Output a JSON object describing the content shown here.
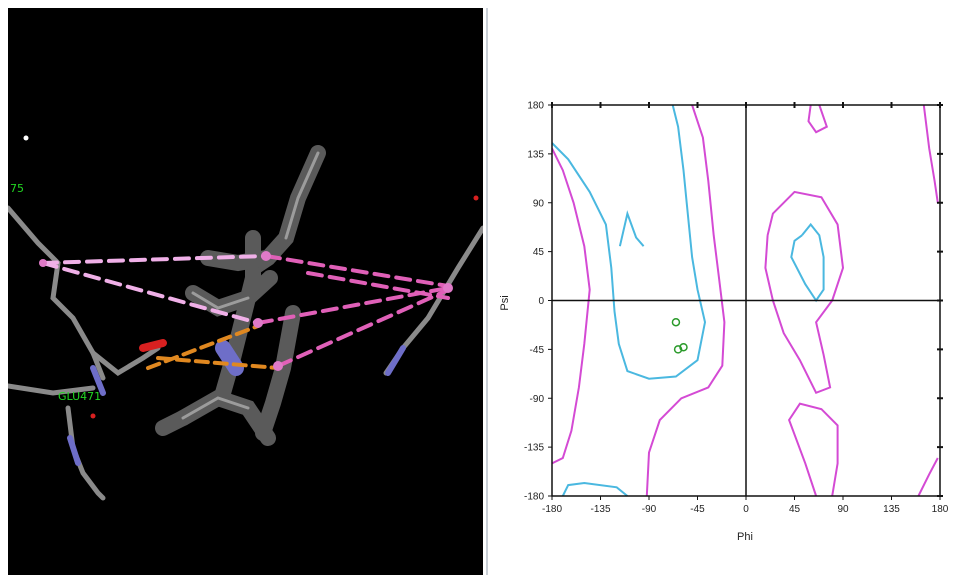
{
  "viewer": {
    "residue_labels": [
      {
        "text": "75"
      },
      {
        "text": "GLU471"
      }
    ]
  },
  "chart_data": {
    "type": "scatter",
    "title": "",
    "xlabel": "Phi",
    "ylabel": "Psi",
    "xlim": [
      -180,
      180
    ],
    "ylim": [
      -180,
      180
    ],
    "x_ticks": [
      "-180",
      "-135",
      "-90",
      "-45",
      "0",
      "45",
      "90",
      "135",
      "180"
    ],
    "y_ticks": [
      "180",
      "135",
      "90",
      "45",
      "0",
      "-45",
      "-90",
      "-135",
      "-180"
    ],
    "grid": false,
    "series": [
      {
        "values": [
          {
            "x": -65,
            "y": -20
          },
          {
            "x": -63,
            "y": -45
          },
          {
            "x": -58,
            "y": -43
          }
        ]
      }
    ],
    "contours": [
      {
        "color": "#4ab8e0",
        "points": [
          [
            -180,
            145
          ],
          [
            -165,
            130
          ],
          [
            -145,
            100
          ],
          [
            -130,
            70
          ],
          [
            -125,
            30
          ],
          [
            -122,
            -10
          ],
          [
            -118,
            -40
          ],
          [
            -110,
            -65
          ],
          [
            -90,
            -72
          ],
          [
            -65,
            -70
          ],
          [
            -45,
            -55
          ],
          [
            -38,
            -20
          ],
          [
            -45,
            10
          ],
          [
            -50,
            40
          ],
          [
            -55,
            90
          ],
          [
            -58,
            120
          ],
          [
            -63,
            160
          ],
          [
            -68,
            180
          ]
        ]
      },
      {
        "color": "#4ab8e0",
        "points": [
          [
            -117,
            50
          ],
          [
            -110,
            80
          ],
          [
            -102,
            58
          ],
          [
            -95,
            50
          ]
        ]
      },
      {
        "color": "#4ab8e0",
        "points": [
          [
            52,
            60
          ],
          [
            60,
            70
          ],
          [
            68,
            60
          ],
          [
            72,
            40
          ],
          [
            72,
            10
          ],
          [
            65,
            0
          ],
          [
            55,
            15
          ],
          [
            42,
            40
          ],
          [
            45,
            55
          ],
          [
            52,
            60
          ]
        ]
      },
      {
        "color": "#4ab8e0",
        "points": [
          [
            -170,
            -180
          ],
          [
            -165,
            -170
          ],
          [
            -150,
            -168
          ],
          [
            -120,
            -172
          ],
          [
            -110,
            -180
          ]
        ]
      },
      {
        "color": "#d44ad4",
        "points": [
          [
            -180,
            -150
          ],
          [
            -170,
            -145
          ],
          [
            -162,
            -120
          ],
          [
            -155,
            -80
          ],
          [
            -150,
            -40
          ],
          [
            -145,
            10
          ],
          [
            -150,
            50
          ],
          [
            -160,
            90
          ],
          [
            -170,
            120
          ],
          [
            -180,
            140
          ]
        ]
      },
      {
        "color": "#d44ad4",
        "points": [
          [
            -50,
            180
          ],
          [
            -40,
            150
          ],
          [
            -35,
            110
          ],
          [
            -30,
            60
          ],
          [
            -25,
            20
          ],
          [
            -20,
            -20
          ],
          [
            -22,
            -60
          ],
          [
            -35,
            -80
          ],
          [
            -60,
            -90
          ],
          [
            -80,
            -110
          ],
          [
            -90,
            -140
          ],
          [
            -92,
            -180
          ]
        ]
      },
      {
        "color": "#d44ad4",
        "points": [
          [
            20,
            60
          ],
          [
            25,
            80
          ],
          [
            45,
            100
          ],
          [
            70,
            95
          ],
          [
            85,
            70
          ],
          [
            90,
            30
          ],
          [
            80,
            0
          ],
          [
            65,
            -20
          ],
          [
            72,
            -50
          ],
          [
            78,
            -80
          ],
          [
            65,
            -85
          ],
          [
            50,
            -55
          ],
          [
            35,
            -30
          ],
          [
            25,
            0
          ],
          [
            18,
            30
          ],
          [
            20,
            60
          ]
        ]
      },
      {
        "color": "#d44ad4",
        "points": [
          [
            65,
            -180
          ],
          [
            55,
            -150
          ],
          [
            40,
            -110
          ],
          [
            50,
            -95
          ],
          [
            70,
            -100
          ],
          [
            85,
            -115
          ],
          [
            85,
            -150
          ],
          [
            80,
            -180
          ]
        ]
      },
      {
        "color": "#d44ad4",
        "points": [
          [
            60,
            180
          ],
          [
            58,
            165
          ],
          [
            65,
            155
          ],
          [
            75,
            160
          ],
          [
            68,
            180
          ]
        ]
      },
      {
        "color": "#d44ad4",
        "points": [
          [
            165,
            180
          ],
          [
            170,
            140
          ],
          [
            175,
            110
          ],
          [
            178,
            90
          ]
        ]
      },
      {
        "color": "#d44ad4",
        "points": [
          [
            160,
            -180
          ],
          [
            170,
            -160
          ],
          [
            178,
            -145
          ]
        ]
      }
    ]
  }
}
